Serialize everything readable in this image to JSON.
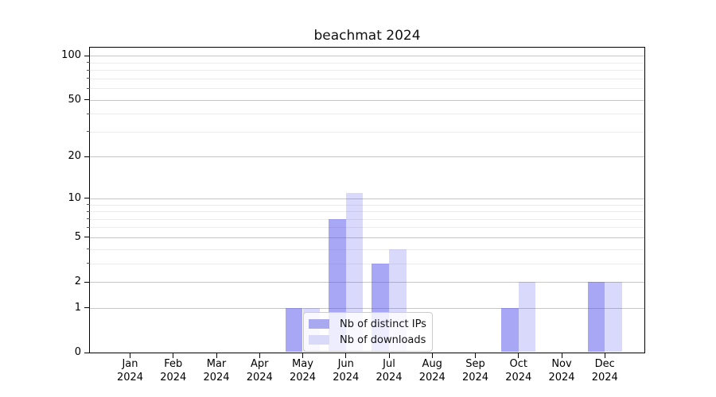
{
  "title": "beachmat 2024",
  "chart_data": {
    "type": "bar",
    "title": "beachmat 2024",
    "categories": [
      "Jan 2024",
      "Feb 2024",
      "Mar 2024",
      "Apr 2024",
      "May 2024",
      "Jun 2024",
      "Jul 2024",
      "Aug 2024",
      "Sep 2024",
      "Oct 2024",
      "Nov 2024",
      "Dec 2024"
    ],
    "series": [
      {
        "name": "Nb of distinct IPs",
        "swatch_color": "#a9a9f0",
        "fill": "rgba(80,80,238,0.50)",
        "values": [
          0,
          0,
          0,
          0,
          1,
          7,
          3,
          0,
          0,
          1,
          0,
          2
        ]
      },
      {
        "name": "Nb of downloads",
        "swatch_color": "#d9d9f8",
        "fill": "rgba(80,80,238,0.22)",
        "values": [
          0,
          0,
          0,
          0,
          1,
          11,
          4,
          0,
          0,
          2,
          0,
          2
        ]
      }
    ],
    "xlabel": "",
    "ylabel": "",
    "yscale": "log1p",
    "ylim": [
      0,
      113.6
    ],
    "y_major_ticks": [
      0,
      1,
      2,
      5,
      10,
      20,
      50,
      100
    ],
    "y_minor_ticks": [
      3,
      4,
      6,
      7,
      8,
      9,
      30,
      40,
      60,
      70,
      80,
      90
    ],
    "grid": true,
    "legend_position": "inside lower center"
  },
  "legend": {
    "items": [
      {
        "label": "Nb of distinct IPs",
        "color": "#a9a9f0"
      },
      {
        "label": "Nb of downloads",
        "color": "#d9d9f8"
      }
    ]
  },
  "style_colors": {
    "grid_major": "#c6c6c6",
    "grid_minor": "#ececec",
    "spine": "#000000",
    "background": "#ffffff"
  }
}
